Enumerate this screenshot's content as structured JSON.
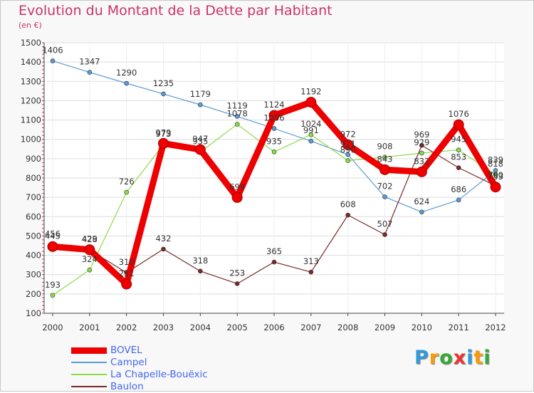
{
  "header": {
    "title": "Evolution du Montant de la Dette par Habitant",
    "subtitle": "(en €)"
  },
  "colors": {
    "title": "#cc3366",
    "legend_text": "#4466ee",
    "grid": "#dddddd",
    "axis": "#444444"
  },
  "chart_data": {
    "type": "line",
    "title": "Evolution du Montant de la Dette par Habitant",
    "ylabel": "(en €)",
    "xlabel": "",
    "x": [
      2000,
      2001,
      2002,
      2003,
      2004,
      2005,
      2006,
      2007,
      2008,
      2009,
      2010,
      2011,
      2012
    ],
    "ylim": [
      100,
      1500
    ],
    "yticks": [
      100,
      200,
      300,
      400,
      500,
      600,
      700,
      800,
      900,
      1000,
      1100,
      1200,
      1300,
      1400,
      1500
    ],
    "grid": "horizontal",
    "legend": "bottom-left",
    "series": [
      {
        "name": "BOVEL",
        "color": "#ee0000",
        "values": [
          445,
          429,
          251,
          979,
          947,
          699,
          1124,
          1192,
          972,
          843,
          832,
          1076,
          753
        ],
        "labels": [
          "445",
          "429",
          "251",
          "979",
          "947",
          "699",
          "1124",
          "1192",
          "972",
          "843",
          "832",
          "1076",
          "753"
        ]
      },
      {
        "name": "Campel",
        "color": "#5b9bd5",
        "values": [
          1406,
          1347,
          1290,
          1235,
          1179,
          1119,
          1056,
          991,
          921,
          702,
          624,
          686,
          839
        ],
        "labels": [
          "1406",
          "1347",
          "1290",
          "1235",
          "1179",
          "1119",
          "1056",
          "991",
          "921",
          "702",
          "624",
          "686",
          "839"
        ]
      },
      {
        "name": "La Chapelle-Bouëxic",
        "color": "#88dd44",
        "values": [
          193,
          324,
          726,
          973,
          935,
          1078,
          935,
          1024,
          890,
          908,
          929,
          945,
          818
        ],
        "labels": [
          "193",
          "324",
          "726",
          "973",
          "935",
          "1078",
          "935",
          "1024",
          "890",
          "908",
          "929",
          "945",
          "818"
        ]
      },
      {
        "name": "Baulon",
        "color": "#7a2a2a",
        "values": [
          456,
          428,
          310,
          432,
          318,
          253,
          365,
          313,
          608,
          507,
          969,
          853,
          760
        ],
        "labels": [
          "456",
          "428",
          "310",
          "432",
          "318",
          "253",
          "365",
          "313",
          "608",
          "507",
          "969",
          "853",
          "760"
        ]
      }
    ]
  },
  "logo": {
    "letters": [
      "P",
      "r",
      "o",
      "x",
      "i",
      "t",
      "i"
    ],
    "colors": [
      "#3399dd",
      "#ff9900",
      "#33aa33",
      "#ee3333",
      "#3399dd",
      "#ff9900",
      "#33aa33"
    ]
  }
}
